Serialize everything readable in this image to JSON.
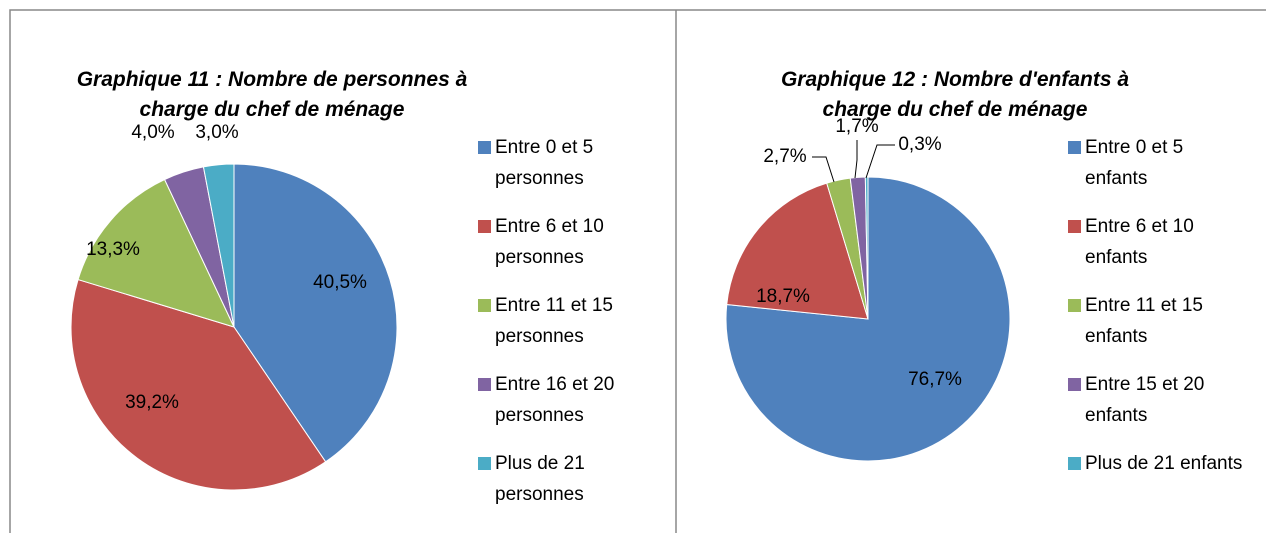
{
  "chart_data": [
    {
      "type": "pie",
      "title": "Graphique 11 : Nombre de personnes à charge du chef de ménage",
      "categories": [
        "Entre 0 et 5 personnes",
        "Entre 6 et 10 personnes",
        "Entre 11 et 15 personnes",
        "Entre 16 et 20 personnes",
        "Plus de 21 personnes"
      ],
      "values": [
        40.5,
        39.2,
        13.3,
        4.0,
        3.0
      ],
      "value_labels": [
        "40,5%",
        "39,2%",
        "13,3%",
        "4,0%",
        "3,0%"
      ],
      "colors": [
        "#4f81bd",
        "#c0504d",
        "#9bbb59",
        "#8064a2",
        "#4bacc6"
      ],
      "legend": "right"
    },
    {
      "type": "pie",
      "title": "Graphique 12 : Nombre d'enfants à charge du chef de ménage",
      "categories": [
        "Entre 0 et 5 enfants",
        "Entre 6 et 10 enfants",
        "Entre 11 et 15 enfants",
        "Entre 15 et 20 enfants",
        "Plus de 21 enfants"
      ],
      "values": [
        76.7,
        18.7,
        2.7,
        1.7,
        0.3
      ],
      "value_labels": [
        "76,7%",
        "18,7%",
        "2,7%",
        "1,7%",
        "0,3%"
      ],
      "colors": [
        "#4f81bd",
        "#c0504d",
        "#9bbb59",
        "#8064a2",
        "#4bacc6"
      ],
      "legend": "right"
    }
  ]
}
